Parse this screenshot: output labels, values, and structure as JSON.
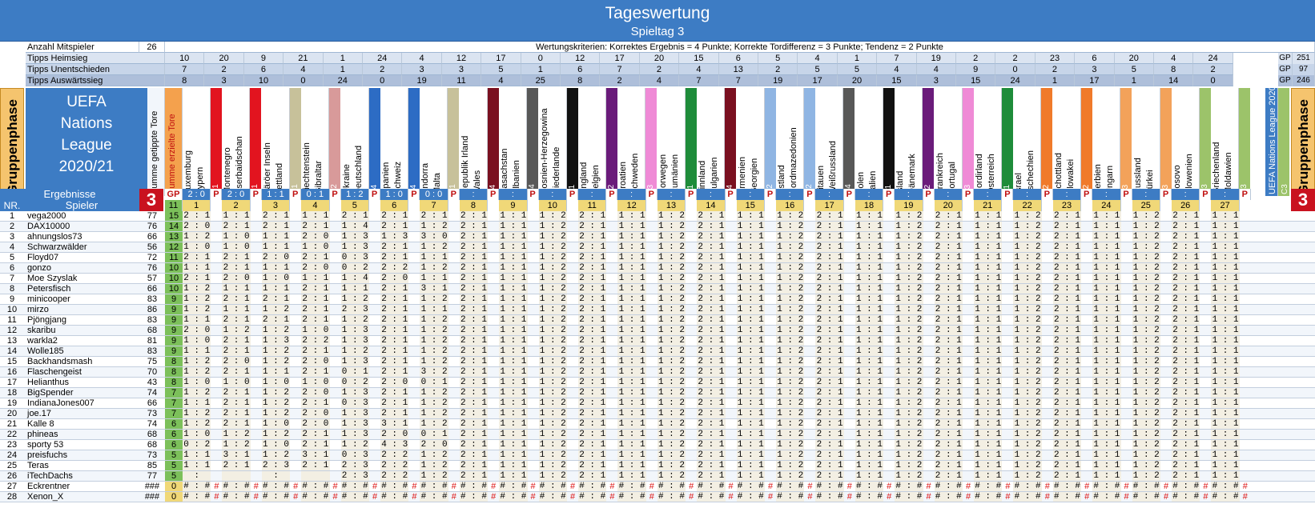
{
  "title": "Tageswertung",
  "subtitle": "Spieltag 3",
  "info": {
    "players_label": "Anzahl Mitspieler",
    "players": "26",
    "criteria": "Wertungskriterien: Korrektes Ergebnis = 4 Punkte; Korrekte Tordifferenz = 3 Punkte; Tendenz = 2 Punkte"
  },
  "tips": {
    "heim_label": "Tipps Heimsieg",
    "remis_label": "Tipps Unentschieden",
    "aus_label": "Tipps Auswärtssieg",
    "heim": [
      "10",
      "20",
      "9",
      "21",
      "1",
      "24",
      "4",
      "12",
      "17",
      "0",
      "12",
      "17",
      "20",
      "15",
      "6",
      "5",
      "4",
      "1",
      "7",
      "19",
      "2",
      "2",
      "23",
      "6",
      "20",
      "4",
      "24"
    ],
    "remis": [
      "7",
      "2",
      "6",
      "4",
      "1",
      "2",
      "3",
      "3",
      "5",
      "1",
      "6",
      "7",
      "2",
      "4",
      "13",
      "2",
      "5",
      "5",
      "4",
      "4",
      "9",
      "0",
      "2",
      "3",
      "5",
      "8",
      "2"
    ],
    "aus": [
      "8",
      "3",
      "10",
      "0",
      "24",
      "0",
      "19",
      "11",
      "4",
      "25",
      "8",
      "2",
      "4",
      "7",
      "7",
      "19",
      "17",
      "20",
      "15",
      "3",
      "15",
      "24",
      "1",
      "17",
      "1",
      "14",
      "0"
    ],
    "gp": "GP",
    "gp_heim": "251",
    "gp_remis": "97",
    "gp_aus": "246"
  },
  "phase_label": "Gruppenphase",
  "uefa": [
    "UEFA",
    "Nations",
    "League",
    "2020/21"
  ],
  "col_tipped": "Summe getippte Tore",
  "col_scored": "Summe erzielte Tore",
  "side_label": "UEFA Nations League 2020/21",
  "matches": [
    {
      "home": "Luxemburg",
      "away": "Zypern",
      "grp": "C1",
      "color": "#e2141f"
    },
    {
      "home": "Montenegro",
      "away": "Aserbaidschan",
      "grp": "C1",
      "color": "#e2141f"
    },
    {
      "home": "Färöer Inseln",
      "away": "Lettland",
      "grp": "D1",
      "color": "#c7c19a"
    },
    {
      "home": "Liechtenstein",
      "away": "Gibraltar",
      "grp": "D2",
      "color": "#d89a9a"
    },
    {
      "home": "Ukraine",
      "away": "Deutschland",
      "grp": "A4",
      "color": "#2d6cc4"
    },
    {
      "home": "Spanien",
      "away": "Schweiz",
      "grp": "A4",
      "color": "#2d6cc4"
    },
    {
      "home": "Andorra",
      "away": "Malta",
      "grp": "D1",
      "color": "#c7c19a"
    },
    {
      "home": "Republik Irland",
      "away": "Wales",
      "grp": "B4",
      "color": "#7a1020"
    },
    {
      "home": "Kasachstan",
      "away": "Albanien",
      "grp": "C4",
      "color": "#585858"
    },
    {
      "home": "Bosnien-Herzegowina",
      "away": "Niederlande",
      "grp": "A1",
      "color": "#111111"
    },
    {
      "home": "England",
      "away": "Belgien",
      "grp": "A2",
      "color": "#6a1b7a"
    },
    {
      "home": "Kroatien",
      "away": "Schweden",
      "grp": "A3",
      "color": "#ef8ad6"
    },
    {
      "home": "Norwegen",
      "away": "Rumänien",
      "grp": "B1",
      "color": "#1e8c3a"
    },
    {
      "home": "Finnland",
      "away": "Bulgarien",
      "grp": "B4",
      "color": "#7a1020"
    },
    {
      "home": "Armenien",
      "away": "Georgien",
      "grp": "C2",
      "color": "#8fb5e3"
    },
    {
      "home": "Estland",
      "away": "Nordmazedonien",
      "grp": "C2",
      "color": "#8fb5e3"
    },
    {
      "home": "Litauen",
      "away": "Weißrussland",
      "grp": "C4",
      "color": "#585858"
    },
    {
      "home": "Polen",
      "away": "Italien",
      "grp": "A1",
      "color": "#111111"
    },
    {
      "home": "Island",
      "away": "Dänemark",
      "grp": "A2",
      "color": "#6a1b7a"
    },
    {
      "home": "Frankreich",
      "away": "Portugal",
      "grp": "A3",
      "color": "#ef8ad6"
    },
    {
      "home": "Nordirland",
      "away": "Österreich",
      "grp": "B1",
      "color": "#1e8c3a"
    },
    {
      "home": "Israel",
      "away": "Tschechien",
      "grp": "B2",
      "color": "#f07a2a"
    },
    {
      "home": "Schottland",
      "away": "Slowakei",
      "grp": "B2",
      "color": "#f07a2a"
    },
    {
      "home": "Serbien",
      "away": "Ungarn",
      "grp": "B3",
      "color": "#f3a25a"
    },
    {
      "home": "Russland",
      "away": "Türkei",
      "grp": "B3",
      "color": "#f3a25a"
    },
    {
      "home": "Kosovo",
      "away": "Slowenien",
      "grp": "C3",
      "color": "#9cc36a"
    },
    {
      "home": "Griechenland",
      "away": "Moldawien",
      "grp": "C3",
      "color": "#9cc36a"
    }
  ],
  "results": {
    "label": "Ergebnisse",
    "gp_label": "GP",
    "big": "3",
    "scores": [
      "2 : 0",
      "2 : 0",
      "1 : 1",
      "0 : 1",
      "1 : 2",
      "1 : 0",
      "0 : 0",
      " : ",
      " : ",
      " : ",
      " : ",
      " : ",
      " : ",
      " : ",
      " : ",
      " : ",
      " : ",
      " : ",
      " : ",
      " : ",
      " : ",
      " : ",
      " : ",
      " : ",
      " : ",
      " : ",
      " : "
    ],
    "p": "P"
  },
  "header2": {
    "nr": "NR.",
    "spieler": "Spieler",
    "gp": "11"
  },
  "players": [
    {
      "nr": "1",
      "name": "vega2000",
      "t": "77",
      "s": "15",
      "d": [
        "2:1",
        "1:1",
        "2:1",
        "1:1",
        "2:1",
        "2:1",
        "2:1"
      ]
    },
    {
      "nr": "2",
      "name": "DAX10000",
      "t": "76",
      "s": "14",
      "d": [
        "2:0",
        "2:1",
        "2:1",
        "2:1",
        "1:4",
        "2:1",
        "1:2"
      ]
    },
    {
      "nr": "3",
      "name": "ahnungslos73",
      "t": "66",
      "s": "13",
      "d": [
        "1:2",
        "1:0",
        "1:1",
        "2:0",
        "1:3",
        "1:3",
        "3:0"
      ]
    },
    {
      "nr": "4",
      "name": "Schwarzwälder",
      "t": "56",
      "s": "12",
      "d": [
        "1:0",
        "1:0",
        "1:1",
        "1:0",
        "1:3",
        "2:1",
        "1:2"
      ]
    },
    {
      "nr": "5",
      "name": "Floyd07",
      "t": "72",
      "s": "11",
      "d": [
        "2:1",
        "2:1",
        "2:0",
        "2:1",
        "0:3",
        "2:1",
        "1:1"
      ]
    },
    {
      "nr": "6",
      "name": "gonzo",
      "t": "76",
      "s": "10",
      "d": [
        "1:1",
        "2:1",
        "1:1",
        "2:0",
        "0:2",
        "2:2",
        "1:2"
      ]
    },
    {
      "nr": "7",
      "name": "Moe Szyslak",
      "t": "57",
      "s": "10",
      "d": [
        "2:1",
        "2:0",
        "1:0",
        "1:1",
        "1:4",
        "2:0",
        "1:1"
      ]
    },
    {
      "nr": "8",
      "name": "Petersfisch",
      "t": "66",
      "s": "10",
      "d": [
        "1:2",
        "1:1",
        "1:1",
        "2:1",
        "1:1",
        "2:1",
        "3:1"
      ]
    },
    {
      "nr": "9",
      "name": "minicooper",
      "t": "83",
      "s": "9",
      "d": [
        "1:2",
        "2:1",
        "2:1",
        "2:1",
        "1:2",
        "2:1",
        "1:2"
      ]
    },
    {
      "nr": "10",
      "name": "mirzo",
      "t": "86",
      "s": "9",
      "d": [
        "1:2",
        "1:1",
        "1:2",
        "2:1",
        "2:3",
        "2:1",
        "1:1"
      ]
    },
    {
      "nr": "11",
      "name": "Pjöngjang",
      "t": "83",
      "s": "9",
      "d": [
        "1:1",
        "2:1",
        "2:1",
        "2:1",
        "1:2",
        "2:1",
        "1:2"
      ]
    },
    {
      "nr": "12",
      "name": "skaribu",
      "t": "68",
      "s": "9",
      "d": [
        "2:0",
        "1:2",
        "1:2",
        "1:0",
        "1:3",
        "2:1",
        "1:2"
      ]
    },
    {
      "nr": "13",
      "name": "warkla2",
      "t": "81",
      "s": "9",
      "d": [
        "1:0",
        "2:1",
        "1:3",
        "2:2",
        "1:3",
        "2:1",
        "1:2"
      ]
    },
    {
      "nr": "14",
      "name": "Wolle185",
      "t": "83",
      "s": "9",
      "d": [
        "1:1",
        "2:1",
        "1:2",
        "2:1",
        "1:2",
        "2:1",
        "1:2"
      ]
    },
    {
      "nr": "15",
      "name": "Backhandsmash",
      "t": "75",
      "s": "8",
      "d": [
        "1:2",
        "2:0",
        "1:2",
        "2:0",
        "1:3",
        "2:1",
        "1:2"
      ]
    },
    {
      "nr": "16",
      "name": "Flaschengeist",
      "t": "70",
      "s": "8",
      "d": [
        "1:2",
        "2:1",
        "1:1",
        "2:1",
        "0:1",
        "2:1",
        "3:2"
      ]
    },
    {
      "nr": "17",
      "name": "Helianthus",
      "t": "43",
      "s": "8",
      "d": [
        "1:0",
        "1:0",
        "1:0",
        "1:0",
        "0:2",
        "2:0",
        "0:1"
      ]
    },
    {
      "nr": "18",
      "name": "BigSpender",
      "t": "74",
      "s": "7",
      "d": [
        "1:2",
        "2:1",
        "1:2",
        "2:0",
        "1:3",
        "2:1",
        "1:2"
      ]
    },
    {
      "nr": "19",
      "name": "IndianaJones007",
      "t": "66",
      "s": "7",
      "d": [
        "1:1",
        "2:1",
        "1:2",
        "2:1",
        "0:3",
        "2:1",
        "1:2"
      ]
    },
    {
      "nr": "20",
      "name": "joe.17",
      "t": "73",
      "s": "7",
      "d": [
        "1:2",
        "2:1",
        "1:2",
        "2:0",
        "1:3",
        "2:1",
        "1:2"
      ]
    },
    {
      "nr": "21",
      "name": "Kalle 8",
      "t": "74",
      "s": "6",
      "d": [
        "1:2",
        "2:1",
        "1:0",
        "2:0",
        "1:3",
        "3:1",
        "1:2"
      ]
    },
    {
      "nr": "22",
      "name": "phineas",
      "t": "68",
      "s": "6",
      "d": [
        "1:0",
        "1:2",
        "1:2",
        "2:1",
        "1:3",
        "2:0",
        "0:1"
      ]
    },
    {
      "nr": "23",
      "name": "sporty 53",
      "t": "68",
      "s": "6",
      "d": [
        "0:2",
        "1:2",
        "1:0",
        "2:1",
        "1:2",
        "4:3",
        "2:0"
      ]
    },
    {
      "nr": "24",
      "name": "preisfuchs",
      "t": "73",
      "s": "5",
      "d": [
        "1:1",
        "3:1",
        "1:2",
        "3:1",
        "0:3",
        "2:2",
        "1:2"
      ]
    },
    {
      "nr": "25",
      "name": "Teras",
      "t": "85",
      "s": "5",
      "d": [
        "1:1",
        "2:1",
        "2:3",
        "2:1",
        "2:3",
        "2:2",
        "1:2"
      ]
    },
    {
      "nr": "26",
      "name": "iTechDachs",
      "t": "77",
      "s": "5",
      "d": [
        " : ",
        "",
        ":",
        "",
        "2:3",
        "2:2",
        "1:2"
      ]
    },
    {
      "nr": "27",
      "name": "Eckrentner",
      "t": "###",
      "s": "0",
      "d": [
        "#:#",
        "#:#",
        "#:#",
        "#:#",
        "#:#",
        "#:#",
        "#:#"
      ]
    },
    {
      "nr": "28",
      "name": "Xenon_X",
      "t": "###",
      "s": "0",
      "d": [
        "#:#",
        "#:#",
        "#:#",
        "#:#",
        "#:#",
        "#:#",
        "#:#"
      ]
    }
  ]
}
